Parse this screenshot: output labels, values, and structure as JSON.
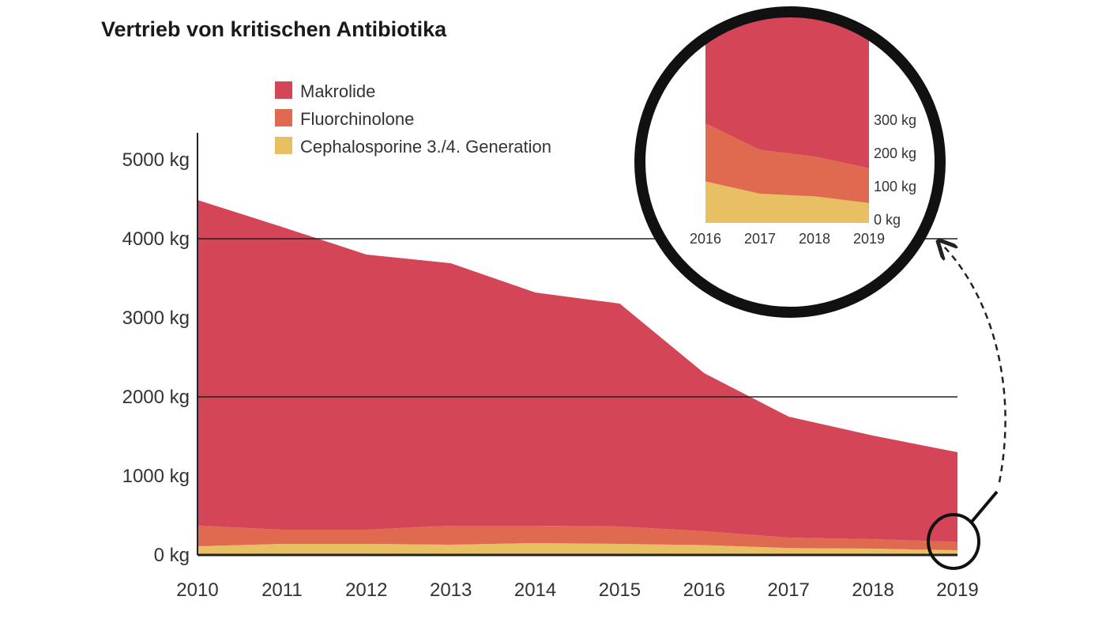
{
  "chart_data": {
    "type": "area",
    "stacked": true,
    "title": "Vertrieb von kritischen Antibiotika",
    "x": [
      2010,
      2011,
      2012,
      2013,
      2014,
      2015,
      2016,
      2017,
      2018,
      2019
    ],
    "x_tick_labels": [
      "2010",
      "2011",
      "2012",
      "2013",
      "2014",
      "2015",
      "2016",
      "2017",
      "2018",
      "2019"
    ],
    "y_tick_labels": [
      "0 kg",
      "1000 kg",
      "2000 kg",
      "3000 kg",
      "4000 kg",
      "5000 kg"
    ],
    "ylim": [
      0,
      5300
    ],
    "gridlines_at": [
      2000,
      4000
    ],
    "unit": "kg",
    "legend_position": "top-left",
    "series": [
      {
        "name": "Cephalosporine 3./4. Generation",
        "color": "#e8c063",
        "values": [
          110,
          140,
          140,
          130,
          150,
          140,
          125,
          88,
          80,
          60
        ]
      },
      {
        "name": "Fluorchinolone",
        "color": "#e06a50",
        "values": [
          260,
          180,
          180,
          240,
          220,
          220,
          175,
          132,
          120,
          105
        ]
      },
      {
        "name": "Makrolide",
        "color": "#d44558",
        "values": [
          4120,
          3830,
          3480,
          3320,
          2950,
          2820,
          2000,
          1530,
          1310,
          1135
        ]
      }
    ],
    "legend_order": [
      "Makrolide",
      "Fluorchinolone",
      "Cephalosporine 3./4. Generation"
    ],
    "inset": {
      "description_of_view": "magnified 2016–2019",
      "x": [
        2016,
        2017,
        2018,
        2019
      ],
      "x_tick_labels": [
        "2016",
        "2017",
        "2018",
        "2019"
      ],
      "y_tick_labels": [
        "0 kg",
        "100 kg",
        "200 kg",
        "300 kg"
      ],
      "ylim": [
        0,
        300
      ]
    }
  }
}
